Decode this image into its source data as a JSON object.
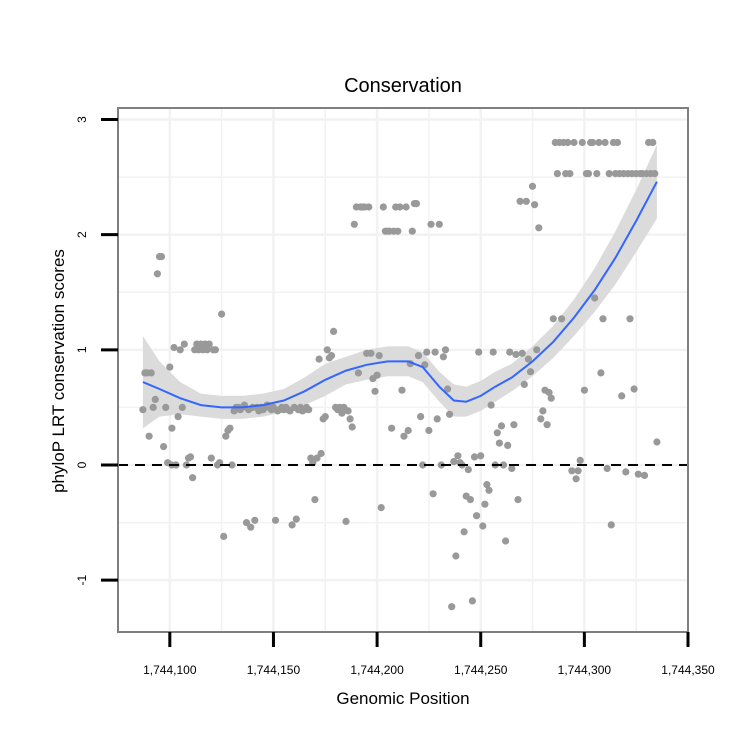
{
  "chart_data": {
    "type": "scatter",
    "title": "Conservation",
    "xlabel": "Genomic Position",
    "ylabel": "phyloP LRT conservation scores",
    "xlim": [
      1744075,
      1744350
    ],
    "ylim": [
      -1.45,
      3.1
    ],
    "x_ticks": [
      1744100,
      1744150,
      1744200,
      1744250,
      1744300,
      1744350
    ],
    "x_tick_labels": [
      "1,744,100",
      "1,744,150",
      "1,744,200",
      "1,744,250",
      "1,744,300",
      "1,744,350"
    ],
    "y_ticks": [
      -1,
      0,
      1,
      2,
      3
    ],
    "y_tick_labels": [
      "-1",
      "0",
      "1",
      "2",
      "3"
    ],
    "reference_line": {
      "y": 0,
      "style": "dashed"
    },
    "grid": true,
    "colors": {
      "points": "#999999",
      "smooth_line": "#3366ff",
      "ribbon": "#d9d9d9",
      "panel_border": "#7f7f7f",
      "grid": "#f2f2f2"
    },
    "points": [
      [
        1744087,
        0.48
      ],
      [
        1744088,
        0.8
      ],
      [
        1744089,
        0.8
      ],
      [
        1744090,
        0.25
      ],
      [
        1744091,
        0.8
      ],
      [
        1744092,
        0.5
      ],
      [
        1744093,
        0.57
      ],
      [
        1744094,
        1.66
      ],
      [
        1744095,
        1.81
      ],
      [
        1744096,
        1.81
      ],
      [
        1744097,
        0.16
      ],
      [
        1744098,
        0.5
      ],
      [
        1744099,
        0.02
      ],
      [
        1744100,
        0.85
      ],
      [
        1744101,
        0.0
      ],
      [
        1744101,
        0.32
      ],
      [
        1744102,
        1.02
      ],
      [
        1744103,
        0.0
      ],
      [
        1744104,
        0.42
      ],
      [
        1744105,
        1.0
      ],
      [
        1744106,
        0.5
      ],
      [
        1744107,
        1.05
      ],
      [
        1744108,
        0.0
      ],
      [
        1744109,
        0.06
      ],
      [
        1744110,
        0.07
      ],
      [
        1744111,
        -0.11
      ],
      [
        1744112,
        1.0
      ],
      [
        1744113,
        1.05
      ],
      [
        1744114,
        1.0
      ],
      [
        1744115,
        1.05
      ],
      [
        1744116,
        1.0
      ],
      [
        1744117,
        1.05
      ],
      [
        1744118,
        1.0
      ],
      [
        1744119,
        1.05
      ],
      [
        1744120,
        0.06
      ],
      [
        1744121,
        1.0
      ],
      [
        1744122,
        1.0
      ],
      [
        1744123,
        0.0
      ],
      [
        1744124,
        0.02
      ],
      [
        1744125,
        1.31
      ],
      [
        1744126,
        -0.62
      ],
      [
        1744127,
        0.25
      ],
      [
        1744128,
        0.3
      ],
      [
        1744129,
        0.32
      ],
      [
        1744130,
        0.0
      ],
      [
        1744131,
        0.47
      ],
      [
        1744132,
        0.5
      ],
      [
        1744133,
        0.5
      ],
      [
        1744134,
        0.48
      ],
      [
        1744135,
        0.5
      ],
      [
        1744136,
        0.52
      ],
      [
        1744137,
        -0.5
      ],
      [
        1744138,
        0.48
      ],
      [
        1744139,
        -0.54
      ],
      [
        1744140,
        0.5
      ],
      [
        1744141,
        -0.48
      ],
      [
        1744142,
        0.5
      ],
      [
        1744143,
        0.47
      ],
      [
        1744144,
        0.5
      ],
      [
        1744145,
        0.48
      ],
      [
        1744146,
        0.5
      ],
      [
        1744147,
        0.52
      ],
      [
        1744148,
        0.5
      ],
      [
        1744149,
        0.48
      ],
      [
        1744150,
        0.5
      ],
      [
        1744151,
        -0.48
      ],
      [
        1744152,
        0.47
      ],
      [
        1744153,
        0.48
      ],
      [
        1744154,
        0.5
      ],
      [
        1744155,
        0.48
      ],
      [
        1744156,
        0.5
      ],
      [
        1744157,
        0.48
      ],
      [
        1744158,
        0.47
      ],
      [
        1744159,
        -0.52
      ],
      [
        1744160,
        0.5
      ],
      [
        1744161,
        -0.47
      ],
      [
        1744162,
        0.48
      ],
      [
        1744163,
        0.5
      ],
      [
        1744164,
        0.47
      ],
      [
        1744165,
        0.48
      ],
      [
        1744166,
        0.5
      ],
      [
        1744167,
        0.48
      ],
      [
        1744168,
        0.06
      ],
      [
        1744169,
        0.02
      ],
      [
        1744170,
        -0.3
      ],
      [
        1744171,
        0.06
      ],
      [
        1744172,
        0.92
      ],
      [
        1744173,
        0.1
      ],
      [
        1744174,
        0.4
      ],
      [
        1744175,
        0.42
      ],
      [
        1744176,
        1.0
      ],
      [
        1744177,
        0.93
      ],
      [
        1744178,
        0.95
      ],
      [
        1744179,
        1.16
      ],
      [
        1744180,
        0.5
      ],
      [
        1744181,
        0.48
      ],
      [
        1744182,
        0.5
      ],
      [
        1744183,
        0.45
      ],
      [
        1744184,
        0.5
      ],
      [
        1744185,
        -0.49
      ],
      [
        1744186,
        0.47
      ],
      [
        1744187,
        0.4
      ],
      [
        1744188,
        0.33
      ],
      [
        1744189,
        2.09
      ],
      [
        1744190,
        2.24
      ],
      [
        1744191,
        0.8
      ],
      [
        1744192,
        2.24
      ],
      [
        1744193,
        2.24
      ],
      [
        1744194,
        2.24
      ],
      [
        1744195,
        0.97
      ],
      [
        1744196,
        2.24
      ],
      [
        1744197,
        0.97
      ],
      [
        1744198,
        0.75
      ],
      [
        1744199,
        0.64
      ],
      [
        1744200,
        0.78
      ],
      [
        1744201,
        0.95
      ],
      [
        1744202,
        -0.37
      ],
      [
        1744203,
        2.24
      ],
      [
        1744204,
        2.03
      ],
      [
        1744205,
        2.03
      ],
      [
        1744206,
        2.03
      ],
      [
        1744207,
        0.32
      ],
      [
        1744208,
        2.03
      ],
      [
        1744209,
        2.24
      ],
      [
        1744210,
        2.03
      ],
      [
        1744211,
        2.24
      ],
      [
        1744212,
        0.65
      ],
      [
        1744213,
        0.25
      ],
      [
        1744214,
        2.24
      ],
      [
        1744215,
        0.3
      ],
      [
        1744216,
        0.88
      ],
      [
        1744217,
        2.03
      ],
      [
        1744218,
        2.27
      ],
      [
        1744219,
        2.27
      ],
      [
        1744220,
        0.95
      ],
      [
        1744221,
        0.42
      ],
      [
        1744222,
        0.0
      ],
      [
        1744223,
        0.87
      ],
      [
        1744224,
        0.98
      ],
      [
        1744225,
        0.3
      ],
      [
        1744226,
        2.09
      ],
      [
        1744227,
        -0.25
      ],
      [
        1744228,
        0.98
      ],
      [
        1744229,
        0.4
      ],
      [
        1744230,
        2.09
      ],
      [
        1744231,
        0.0
      ],
      [
        1744232,
        0.94
      ],
      [
        1744233,
        1.0
      ],
      [
        1744234,
        0.66
      ],
      [
        1744235,
        0.44
      ],
      [
        1744236,
        -1.23
      ],
      [
        1744237,
        0.03
      ],
      [
        1744238,
        -0.79
      ],
      [
        1744239,
        0.08
      ],
      [
        1744240,
        0.02
      ],
      [
        1744241,
        0.0
      ],
      [
        1744242,
        -0.58
      ],
      [
        1744243,
        -0.27
      ],
      [
        1744244,
        -0.04
      ],
      [
        1744245,
        -0.3
      ],
      [
        1744246,
        -1.18
      ],
      [
        1744247,
        0.07
      ],
      [
        1744248,
        -0.44
      ],
      [
        1744249,
        0.98
      ],
      [
        1744250,
        0.08
      ],
      [
        1744251,
        -0.53
      ],
      [
        1744252,
        -0.34
      ],
      [
        1744253,
        -0.17
      ],
      [
        1744254,
        -0.22
      ],
      [
        1744255,
        0.52
      ],
      [
        1744256,
        0.98
      ],
      [
        1744257,
        0.0
      ],
      [
        1744258,
        0.28
      ],
      [
        1744259,
        0.19
      ],
      [
        1744260,
        0.34
      ],
      [
        1744261,
        0.0
      ],
      [
        1744262,
        -0.66
      ],
      [
        1744263,
        0.17
      ],
      [
        1744264,
        0.98
      ],
      [
        1744265,
        -0.03
      ],
      [
        1744266,
        0.35
      ],
      [
        1744267,
        0.96
      ],
      [
        1744268,
        -0.3
      ],
      [
        1744269,
        2.29
      ],
      [
        1744270,
        0.97
      ],
      [
        1744271,
        0.7
      ],
      [
        1744272,
        2.29
      ],
      [
        1744273,
        0.92
      ],
      [
        1744274,
        0.81
      ],
      [
        1744275,
        2.42
      ],
      [
        1744276,
        2.26
      ],
      [
        1744277,
        1.0
      ],
      [
        1744278,
        2.06
      ],
      [
        1744279,
        0.4
      ],
      [
        1744280,
        0.47
      ],
      [
        1744281,
        0.65
      ],
      [
        1744282,
        0.35
      ],
      [
        1744283,
        0.63
      ],
      [
        1744284,
        0.58
      ],
      [
        1744285,
        1.27
      ],
      [
        1744286,
        2.8
      ],
      [
        1744287,
        2.53
      ],
      [
        1744288,
        2.8
      ],
      [
        1744289,
        1.27
      ],
      [
        1744290,
        2.8
      ],
      [
        1744291,
        2.53
      ],
      [
        1744292,
        2.8
      ],
      [
        1744293,
        2.53
      ],
      [
        1744294,
        -0.05
      ],
      [
        1744295,
        2.8
      ],
      [
        1744296,
        -0.12
      ],
      [
        1744297,
        -0.05
      ],
      [
        1744298,
        0.04
      ],
      [
        1744299,
        2.8
      ],
      [
        1744300,
        0.65
      ],
      [
        1744301,
        2.53
      ],
      [
        1744302,
        2.53
      ],
      [
        1744303,
        2.8
      ],
      [
        1744304,
        2.8
      ],
      [
        1744305,
        1.45
      ],
      [
        1744306,
        2.53
      ],
      [
        1744307,
        2.8
      ],
      [
        1744308,
        0.8
      ],
      [
        1744309,
        1.27
      ],
      [
        1744310,
        2.8
      ],
      [
        1744311,
        -0.03
      ],
      [
        1744312,
        2.53
      ],
      [
        1744313,
        -0.52
      ],
      [
        1744314,
        2.8
      ],
      [
        1744315,
        2.53
      ],
      [
        1744316,
        2.8
      ],
      [
        1744317,
        2.53
      ],
      [
        1744318,
        0.6
      ],
      [
        1744319,
        2.53
      ],
      [
        1744320,
        -0.06
      ],
      [
        1744321,
        2.53
      ],
      [
        1744322,
        1.27
      ],
      [
        1744323,
        2.53
      ],
      [
        1744324,
        0.66
      ],
      [
        1744325,
        2.53
      ],
      [
        1744326,
        -0.08
      ],
      [
        1744327,
        2.53
      ],
      [
        1744328,
        2.53
      ],
      [
        1744329,
        -0.09
      ],
      [
        1744330,
        2.53
      ],
      [
        1744331,
        2.8
      ],
      [
        1744332,
        2.53
      ],
      [
        1744333,
        2.8
      ],
      [
        1744334,
        2.53
      ],
      [
        1744335,
        0.2
      ]
    ],
    "smooth": {
      "x": [
        1744087,
        1744095,
        1744105,
        1744115,
        1744125,
        1744135,
        1744145,
        1744155,
        1744165,
        1744175,
        1744185,
        1744195,
        1744205,
        1744215,
        1744222,
        1744230,
        1744237,
        1744243,
        1744250,
        1744257,
        1744265,
        1744275,
        1744285,
        1744295,
        1744305,
        1744315,
        1744325,
        1744335
      ],
      "y": [
        0.72,
        0.66,
        0.58,
        0.52,
        0.5,
        0.5,
        0.52,
        0.56,
        0.64,
        0.74,
        0.82,
        0.87,
        0.9,
        0.9,
        0.85,
        0.68,
        0.56,
        0.55,
        0.6,
        0.68,
        0.76,
        0.9,
        1.07,
        1.28,
        1.52,
        1.8,
        2.12,
        2.46
      ],
      "lower": [
        0.32,
        0.42,
        0.44,
        0.42,
        0.4,
        0.4,
        0.42,
        0.46,
        0.52,
        0.6,
        0.7,
        0.74,
        0.77,
        0.77,
        0.72,
        0.55,
        0.42,
        0.42,
        0.47,
        0.55,
        0.64,
        0.77,
        0.93,
        1.12,
        1.33,
        1.57,
        1.85,
        2.14
      ],
      "upper": [
        1.12,
        0.9,
        0.72,
        0.62,
        0.6,
        0.6,
        0.62,
        0.66,
        0.76,
        0.88,
        0.94,
        1.0,
        1.03,
        1.03,
        0.98,
        0.81,
        0.7,
        0.68,
        0.73,
        0.81,
        0.88,
        1.03,
        1.21,
        1.44,
        1.71,
        2.03,
        2.39,
        2.78
      ]
    }
  }
}
